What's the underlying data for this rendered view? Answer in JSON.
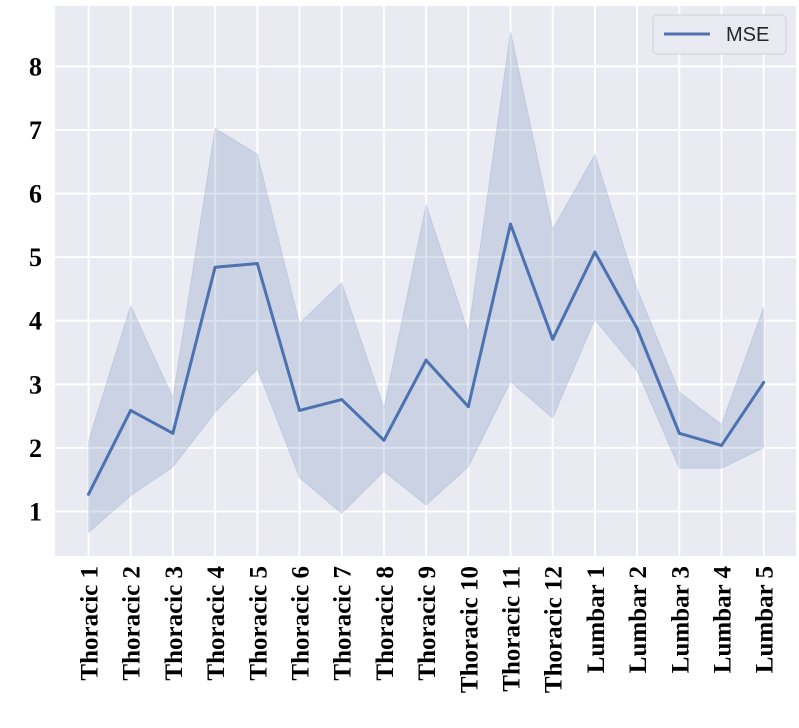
{
  "chart_data": {
    "type": "line",
    "title": "",
    "xlabel": "",
    "ylabel": "",
    "categories": [
      "Thoracic 1",
      "Thoracic 2",
      "Thoracic 3",
      "Thoracic 4",
      "Thoracic 5",
      "Thoracic 6",
      "Thoracic 7",
      "Thoracic 8",
      "Thoracic 9",
      "Thoracic 10",
      "Thoracic 11",
      "Thoracic 12",
      "Lumbar 1",
      "Lumbar 2",
      "Lumbar 3",
      "Lumbar 4",
      "Lumbar 5"
    ],
    "series": [
      {
        "name": "MSE",
        "values": [
          1.27,
          2.59,
          2.23,
          4.84,
          4.9,
          2.59,
          2.76,
          2.12,
          3.38,
          2.65,
          5.52,
          3.71,
          5.08,
          3.88,
          2.23,
          2.04,
          3.03
        ],
        "band_lower": [
          0.67,
          1.25,
          1.7,
          2.56,
          3.24,
          1.53,
          0.97,
          1.63,
          1.1,
          1.7,
          3.04,
          2.47,
          4.02,
          3.21,
          1.68,
          1.68,
          2.0
        ],
        "band_upper": [
          2.11,
          4.24,
          2.79,
          7.03,
          6.62,
          3.96,
          4.6,
          2.63,
          5.83,
          3.82,
          8.55,
          5.44,
          6.62,
          4.5,
          2.88,
          2.37,
          4.22
        ]
      }
    ],
    "yticks": [
      1,
      2,
      3,
      4,
      5,
      6,
      7,
      8
    ],
    "ylim": [
      0.3,
      8.95
    ],
    "grid": true,
    "legend_position": "top-right",
    "colors": {
      "line": "#4c72b0",
      "band": "#4c72b0",
      "axes_bg": "#eaeaf2",
      "grid": "#ffffff"
    }
  }
}
